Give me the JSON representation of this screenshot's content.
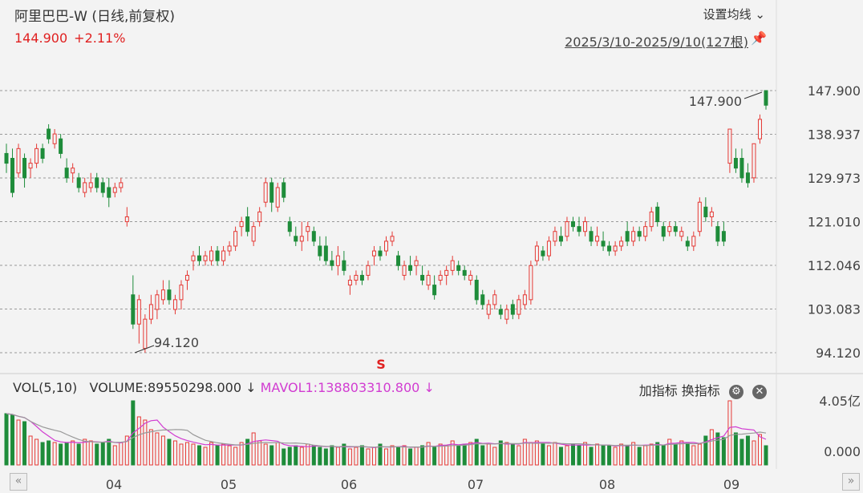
{
  "header": {
    "title": "阿里巴巴-W (日线,前复权)",
    "settings_label": "设置均线",
    "settings_icon": "chevron-down-icon",
    "last_price": "144.900",
    "change_pct": "+2.11%",
    "date_range": "2025/3/10-2025/9/10(127根)",
    "pin_icon": "pin-icon"
  },
  "volume_panel": {
    "indicator": "VOL(5,10)",
    "volume": "VOLUME:89550298.000",
    "volume_arrow": "↓",
    "mavol": "MAVOL1:138803310.800",
    "mavol_arrow": "↓",
    "add_indicator": "加指标",
    "switch_indicator": "换指标",
    "gear_icon": "gear-icon",
    "close_icon": "close-icon",
    "y_top": "4.05亿",
    "y_bottom": "0.000"
  },
  "annotations": {
    "high": "147.900",
    "low": "94.120",
    "signal": "S"
  },
  "colors": {
    "up": "#e53935",
    "down": "#1e8c3a",
    "ma": "#d13cd1",
    "ma2": "#999999"
  },
  "chart_data": {
    "type": "candlestick",
    "y_ticks": [
      "147.900",
      "138.937",
      "129.973",
      "121.010",
      "112.046",
      "103.083",
      "94.120"
    ],
    "y_range": [
      94.12,
      147.9
    ],
    "x_ticks": [
      "04",
      "05",
      "06",
      "07",
      "08",
      "09"
    ],
    "volume_range": [
      0,
      405000000
    ],
    "candles": [
      {
        "o": 135,
        "h": 137,
        "l": 131,
        "c": 133
      },
      {
        "o": 134,
        "h": 136,
        "l": 126,
        "c": 127
      },
      {
        "o": 131,
        "h": 137,
        "l": 130,
        "c": 136
      },
      {
        "o": 134,
        "h": 135,
        "l": 128,
        "c": 130
      },
      {
        "o": 132,
        "h": 134,
        "l": 130,
        "c": 133
      },
      {
        "o": 133,
        "h": 137,
        "l": 132,
        "c": 136
      },
      {
        "o": 136,
        "h": 137,
        "l": 133,
        "c": 134
      },
      {
        "o": 140,
        "h": 141,
        "l": 137,
        "c": 138
      },
      {
        "o": 137,
        "h": 140,
        "l": 136,
        "c": 139
      },
      {
        "o": 138,
        "h": 139,
        "l": 134,
        "c": 135
      },
      {
        "o": 132,
        "h": 134,
        "l": 129,
        "c": 130
      },
      {
        "o": 131,
        "h": 133,
        "l": 129,
        "c": 132
      },
      {
        "o": 130,
        "h": 131,
        "l": 127,
        "c": 128
      },
      {
        "o": 127,
        "h": 130,
        "l": 126,
        "c": 129
      },
      {
        "o": 128,
        "h": 131,
        "l": 127,
        "c": 129
      },
      {
        "o": 130,
        "h": 131,
        "l": 127,
        "c": 128
      },
      {
        "o": 129,
        "h": 130,
        "l": 126,
        "c": 127
      },
      {
        "o": 128,
        "h": 130,
        "l": 124,
        "c": 126
      },
      {
        "o": 127,
        "h": 129,
        "l": 126,
        "c": 128
      },
      {
        "o": 128,
        "h": 130,
        "l": 127,
        "c": 129
      },
      {
        "o": 121,
        "h": 124,
        "l": 120,
        "c": 122
      },
      {
        "o": 106,
        "h": 110,
        "l": 99,
        "c": 100
      },
      {
        "o": 100,
        "h": 106,
        "l": 96,
        "c": 105
      },
      {
        "o": 95,
        "h": 102,
        "l": 94.12,
        "c": 101
      },
      {
        "o": 101,
        "h": 106,
        "l": 100,
        "c": 104
      },
      {
        "o": 103,
        "h": 107,
        "l": 101,
        "c": 106
      },
      {
        "o": 105,
        "h": 109,
        "l": 104,
        "c": 107
      },
      {
        "o": 107,
        "h": 109,
        "l": 104,
        "c": 105
      },
      {
        "o": 103,
        "h": 106,
        "l": 102,
        "c": 105
      },
      {
        "o": 105,
        "h": 109,
        "l": 103,
        "c": 108
      },
      {
        "o": 109,
        "h": 111,
        "l": 107,
        "c": 110
      },
      {
        "o": 113,
        "h": 115,
        "l": 111,
        "c": 114
      },
      {
        "o": 114,
        "h": 116,
        "l": 112,
        "c": 113
      },
      {
        "o": 113,
        "h": 115,
        "l": 112,
        "c": 114
      },
      {
        "o": 113,
        "h": 116,
        "l": 112,
        "c": 115
      },
      {
        "o": 115,
        "h": 116,
        "l": 112,
        "c": 113
      },
      {
        "o": 113,
        "h": 116,
        "l": 112,
        "c": 115
      },
      {
        "o": 115,
        "h": 117,
        "l": 114,
        "c": 116
      },
      {
        "o": 116,
        "h": 120,
        "l": 115,
        "c": 119
      },
      {
        "o": 120,
        "h": 122,
        "l": 118,
        "c": 121
      },
      {
        "o": 122,
        "h": 124,
        "l": 118,
        "c": 119
      },
      {
        "o": 117,
        "h": 121,
        "l": 116,
        "c": 120
      },
      {
        "o": 121,
        "h": 124,
        "l": 120,
        "c": 123
      },
      {
        "o": 125,
        "h": 130,
        "l": 124,
        "c": 129
      },
      {
        "o": 129,
        "h": 130,
        "l": 123,
        "c": 125
      },
      {
        "o": 124,
        "h": 129,
        "l": 123,
        "c": 128
      },
      {
        "o": 129,
        "h": 130,
        "l": 125,
        "c": 126
      },
      {
        "o": 121,
        "h": 122,
        "l": 118,
        "c": 119
      },
      {
        "o": 118,
        "h": 120,
        "l": 116,
        "c": 117
      },
      {
        "o": 117,
        "h": 121,
        "l": 115,
        "c": 118
      },
      {
        "o": 119,
        "h": 121,
        "l": 117,
        "c": 120
      },
      {
        "o": 119,
        "h": 120,
        "l": 116,
        "c": 117
      },
      {
        "o": 116,
        "h": 118,
        "l": 113,
        "c": 114
      },
      {
        "o": 116,
        "h": 118,
        "l": 112,
        "c": 113
      },
      {
        "o": 113,
        "h": 115,
        "l": 111,
        "c": 112
      },
      {
        "o": 112,
        "h": 116,
        "l": 110,
        "c": 114
      },
      {
        "o": 113,
        "h": 115,
        "l": 110,
        "c": 111
      },
      {
        "o": 108,
        "h": 110,
        "l": 106,
        "c": 109
      },
      {
        "o": 109,
        "h": 111,
        "l": 108,
        "c": 110
      },
      {
        "o": 110,
        "h": 111,
        "l": 108,
        "c": 109
      },
      {
        "o": 110,
        "h": 113,
        "l": 109,
        "c": 112
      },
      {
        "o": 114,
        "h": 116,
        "l": 112,
        "c": 115
      },
      {
        "o": 115,
        "h": 116,
        "l": 113,
        "c": 114
      },
      {
        "o": 115,
        "h": 118,
        "l": 114,
        "c": 117
      },
      {
        "o": 117,
        "h": 119,
        "l": 116,
        "c": 118
      },
      {
        "o": 114,
        "h": 115,
        "l": 111,
        "c": 112
      },
      {
        "o": 110,
        "h": 113,
        "l": 109,
        "c": 112
      },
      {
        "o": 112,
        "h": 114,
        "l": 110,
        "c": 111
      },
      {
        "o": 112,
        "h": 114,
        "l": 110,
        "c": 113
      },
      {
        "o": 110,
        "h": 112,
        "l": 108,
        "c": 109
      },
      {
        "o": 108,
        "h": 111,
        "l": 107,
        "c": 110
      },
      {
        "o": 108,
        "h": 110,
        "l": 105,
        "c": 106
      },
      {
        "o": 109,
        "h": 111,
        "l": 108,
        "c": 110
      },
      {
        "o": 110,
        "h": 112,
        "l": 108,
        "c": 111
      },
      {
        "o": 111,
        "h": 114,
        "l": 110,
        "c": 113
      },
      {
        "o": 112,
        "h": 113,
        "l": 110,
        "c": 111
      },
      {
        "o": 111,
        "h": 112,
        "l": 109,
        "c": 110
      },
      {
        "o": 109,
        "h": 111,
        "l": 108,
        "c": 110
      },
      {
        "o": 109,
        "h": 110,
        "l": 104,
        "c": 105
      },
      {
        "o": 106,
        "h": 107,
        "l": 103,
        "c": 104
      },
      {
        "o": 102,
        "h": 105,
        "l": 101,
        "c": 104
      },
      {
        "o": 104,
        "h": 107,
        "l": 103,
        "c": 106
      },
      {
        "o": 103,
        "h": 104,
        "l": 101,
        "c": 102
      },
      {
        "o": 101,
        "h": 104,
        "l": 100,
        "c": 103
      },
      {
        "o": 104,
        "h": 105,
        "l": 101,
        "c": 102
      },
      {
        "o": 102,
        "h": 106,
        "l": 101,
        "c": 105
      },
      {
        "o": 104,
        "h": 107,
        "l": 103,
        "c": 106
      },
      {
        "o": 105,
        "h": 113,
        "l": 104,
        "c": 112
      },
      {
        "o": 113,
        "h": 117,
        "l": 112,
        "c": 116
      },
      {
        "o": 115,
        "h": 116,
        "l": 113,
        "c": 114
      },
      {
        "o": 114,
        "h": 118,
        "l": 113,
        "c": 117
      },
      {
        "o": 117,
        "h": 120,
        "l": 116,
        "c": 119
      },
      {
        "o": 118,
        "h": 120,
        "l": 116,
        "c": 117
      },
      {
        "o": 118,
        "h": 122,
        "l": 117,
        "c": 121
      },
      {
        "o": 121,
        "h": 122,
        "l": 119,
        "c": 120
      },
      {
        "o": 120,
        "h": 122,
        "l": 118,
        "c": 119
      },
      {
        "o": 119,
        "h": 122,
        "l": 118,
        "c": 121
      },
      {
        "o": 119,
        "h": 120,
        "l": 116,
        "c": 117
      },
      {
        "o": 117,
        "h": 120,
        "l": 116,
        "c": 118
      },
      {
        "o": 117,
        "h": 119,
        "l": 115,
        "c": 116
      },
      {
        "o": 116,
        "h": 117,
        "l": 114,
        "c": 115
      },
      {
        "o": 115,
        "h": 117,
        "l": 114,
        "c": 116
      },
      {
        "o": 116,
        "h": 118,
        "l": 115,
        "c": 117
      },
      {
        "o": 119,
        "h": 121,
        "l": 116,
        "c": 117
      },
      {
        "o": 117,
        "h": 120,
        "l": 116,
        "c": 119
      },
      {
        "o": 119,
        "h": 120,
        "l": 117,
        "c": 118
      },
      {
        "o": 118,
        "h": 121,
        "l": 117,
        "c": 120
      },
      {
        "o": 120,
        "h": 124,
        "l": 119,
        "c": 123
      },
      {
        "o": 124,
        "h": 125,
        "l": 120,
        "c": 121
      },
      {
        "o": 120,
        "h": 121,
        "l": 117,
        "c": 118
      },
      {
        "o": 119,
        "h": 121,
        "l": 118,
        "c": 120
      },
      {
        "o": 120,
        "h": 121,
        "l": 118,
        "c": 119
      },
      {
        "o": 118,
        "h": 120,
        "l": 117,
        "c": 119
      },
      {
        "o": 117,
        "h": 118,
        "l": 115,
        "c": 116
      },
      {
        "o": 116,
        "h": 119,
        "l": 115,
        "c": 118
      },
      {
        "o": 119,
        "h": 126,
        "l": 118,
        "c": 125
      },
      {
        "o": 124,
        "h": 126,
        "l": 121,
        "c": 122
      },
      {
        "o": 122,
        "h": 124,
        "l": 120,
        "c": 123
      },
      {
        "o": 120,
        "h": 121,
        "l": 116,
        "c": 117
      },
      {
        "o": 119,
        "h": 121,
        "l": 116,
        "c": 117
      },
      {
        "o": 133,
        "h": 140,
        "l": 131,
        "c": 140
      },
      {
        "o": 134,
        "h": 136,
        "l": 131,
        "c": 132
      },
      {
        "o": 134,
        "h": 136,
        "l": 129,
        "c": 130
      },
      {
        "o": 131,
        "h": 133,
        "l": 128,
        "c": 129
      },
      {
        "o": 130,
        "h": 137,
        "l": 129,
        "c": 137
      },
      {
        "o": 138,
        "h": 143,
        "l": 137,
        "c": 142
      },
      {
        "o": 147.9,
        "h": 147.9,
        "l": 144,
        "c": 144.9
      }
    ],
    "volume": [
      32,
      31,
      28,
      27,
      18,
      16,
      14,
      15,
      14,
      13,
      14,
      15,
      13,
      16,
      15,
      13,
      14,
      16,
      12,
      14,
      18,
      40,
      30,
      28,
      22,
      20,
      18,
      16,
      15,
      13,
      14,
      13,
      12,
      11,
      14,
      12,
      13,
      12,
      11,
      14,
      16,
      20,
      15,
      13,
      12,
      14,
      10,
      11,
      12,
      11,
      13,
      12,
      11,
      10,
      12,
      11,
      13,
      10,
      11,
      12,
      10,
      11,
      13,
      10,
      12,
      11,
      12,
      10,
      11,
      12,
      14,
      11,
      13,
      12,
      15,
      12,
      13,
      14,
      16,
      12,
      13,
      11,
      15,
      14,
      13,
      12,
      16,
      14,
      15,
      13,
      12,
      14,
      11,
      12,
      13,
      12,
      14,
      11,
      13,
      12,
      12,
      11,
      13,
      12,
      14,
      11,
      12,
      13,
      14,
      12,
      16,
      13,
      15,
      14,
      12,
      13,
      18,
      22,
      20,
      17,
      40,
      20,
      16,
      18,
      15,
      19,
      12
    ]
  }
}
